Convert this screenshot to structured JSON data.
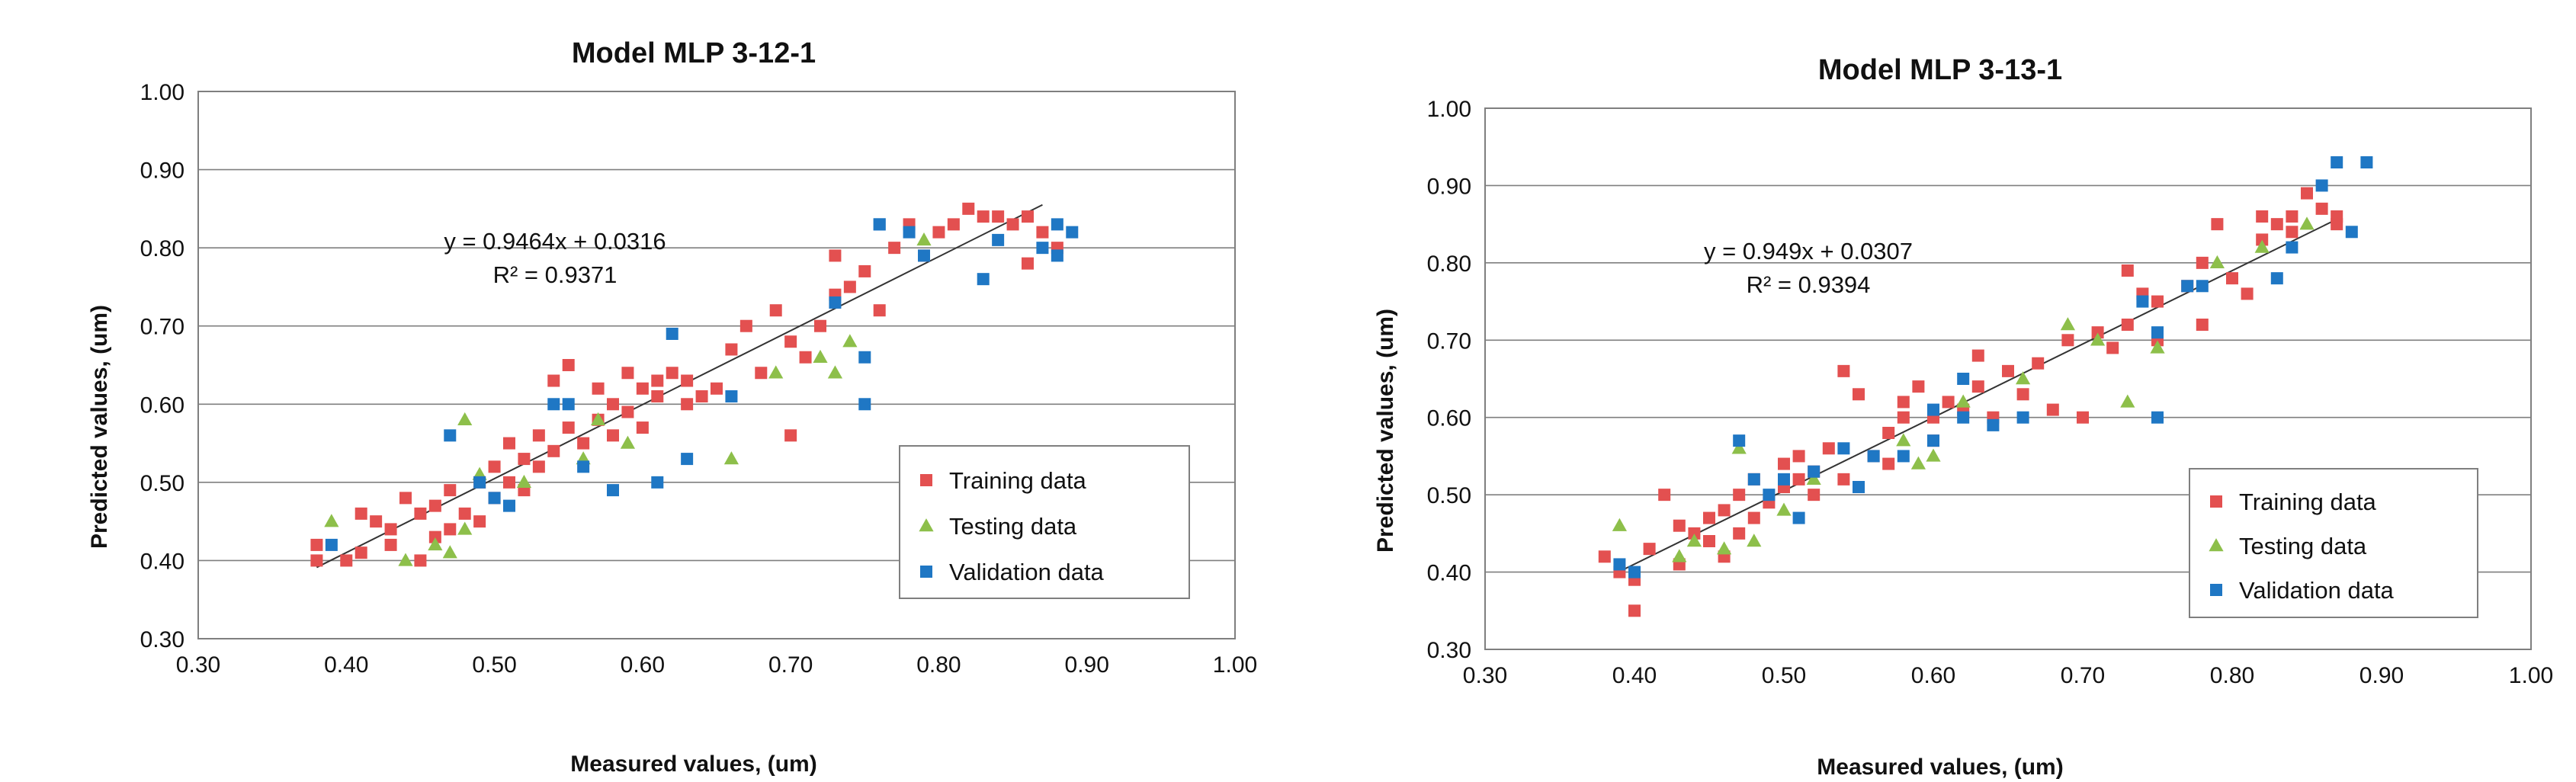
{
  "colors": {
    "training": "#e35050",
    "testing": "#8dbf4a",
    "validation": "#1f77c4",
    "fit": "#333333",
    "grid": "#7f7f7f"
  },
  "chart_data": [
    {
      "type": "scatter",
      "title": "Model MLP  3-12-1",
      "xlabel": "Measured values, (um)",
      "ylabel": "Predicted values, (um)",
      "xlim": [
        0.3,
        1.0
      ],
      "ylim": [
        0.3,
        1.0
      ],
      "xticks": [
        "0.30",
        "0.40",
        "0.50",
        "0.60",
        "0.70",
        "0.80",
        "0.90",
        "1.00"
      ],
      "yticks": [
        "0.30",
        "0.40",
        "0.50",
        "0.60",
        "0.70",
        "0.80",
        "0.90",
        "1.00"
      ],
      "trendline": {
        "slope": 0.9464,
        "intercept": 0.0316,
        "x_range": [
          0.38,
          0.87
        ],
        "equation": "y = 0.9464x + 0.0316",
        "r2": "R² = 0.9371"
      },
      "legend": [
        "Training data",
        "Testing data",
        "Validation data"
      ],
      "series": [
        {
          "name": "Training data",
          "marker": "square",
          "color": "#e35050",
          "points": [
            [
              0.38,
              0.4
            ],
            [
              0.38,
              0.42
            ],
            [
              0.4,
              0.4
            ],
            [
              0.41,
              0.41
            ],
            [
              0.41,
              0.46
            ],
            [
              0.42,
              0.45
            ],
            [
              0.43,
              0.42
            ],
            [
              0.43,
              0.44
            ],
            [
              0.44,
              0.48
            ],
            [
              0.45,
              0.46
            ],
            [
              0.45,
              0.4
            ],
            [
              0.46,
              0.43
            ],
            [
              0.46,
              0.47
            ],
            [
              0.47,
              0.44
            ],
            [
              0.47,
              0.49
            ],
            [
              0.48,
              0.46
            ],
            [
              0.49,
              0.45
            ],
            [
              0.49,
              0.5
            ],
            [
              0.5,
              0.52
            ],
            [
              0.5,
              0.48
            ],
            [
              0.51,
              0.55
            ],
            [
              0.51,
              0.5
            ],
            [
              0.52,
              0.53
            ],
            [
              0.52,
              0.49
            ],
            [
              0.53,
              0.56
            ],
            [
              0.53,
              0.52
            ],
            [
              0.54,
              0.63
            ],
            [
              0.54,
              0.54
            ],
            [
              0.55,
              0.57
            ],
            [
              0.55,
              0.65
            ],
            [
              0.56,
              0.55
            ],
            [
              0.57,
              0.58
            ],
            [
              0.57,
              0.62
            ],
            [
              0.58,
              0.6
            ],
            [
              0.58,
              0.56
            ],
            [
              0.59,
              0.64
            ],
            [
              0.59,
              0.59
            ],
            [
              0.6,
              0.62
            ],
            [
              0.6,
              0.57
            ],
            [
              0.61,
              0.61
            ],
            [
              0.61,
              0.63
            ],
            [
              0.62,
              0.64
            ],
            [
              0.63,
              0.6
            ],
            [
              0.63,
              0.63
            ],
            [
              0.64,
              0.61
            ],
            [
              0.65,
              0.62
            ],
            [
              0.66,
              0.67
            ],
            [
              0.67,
              0.7
            ],
            [
              0.68,
              0.64
            ],
            [
              0.69,
              0.72
            ],
            [
              0.7,
              0.56
            ],
            [
              0.7,
              0.68
            ],
            [
              0.71,
              0.66
            ],
            [
              0.72,
              0.7
            ],
            [
              0.73,
              0.74
            ],
            [
              0.73,
              0.79
            ],
            [
              0.74,
              0.75
            ],
            [
              0.75,
              0.77
            ],
            [
              0.76,
              0.72
            ],
            [
              0.77,
              0.8
            ],
            [
              0.78,
              0.83
            ],
            [
              0.79,
              0.79
            ],
            [
              0.8,
              0.82
            ],
            [
              0.81,
              0.83
            ],
            [
              0.82,
              0.85
            ],
            [
              0.83,
              0.84
            ],
            [
              0.84,
              0.84
            ],
            [
              0.85,
              0.83
            ],
            [
              0.86,
              0.84
            ],
            [
              0.87,
              0.82
            ],
            [
              0.86,
              0.78
            ],
            [
              0.88,
              0.8
            ]
          ]
        },
        {
          "name": "Testing data",
          "marker": "triangle",
          "color": "#8dbf4a",
          "points": [
            [
              0.39,
              0.45
            ],
            [
              0.44,
              0.4
            ],
            [
              0.46,
              0.42
            ],
            [
              0.47,
              0.41
            ],
            [
              0.48,
              0.58
            ],
            [
              0.48,
              0.44
            ],
            [
              0.49,
              0.51
            ],
            [
              0.52,
              0.5
            ],
            [
              0.57,
              0.58
            ],
            [
              0.59,
              0.55
            ],
            [
              0.66,
              0.53
            ],
            [
              0.69,
              0.64
            ],
            [
              0.72,
              0.66
            ],
            [
              0.74,
              0.68
            ],
            [
              0.79,
              0.81
            ],
            [
              0.73,
              0.64
            ],
            [
              0.56,
              0.53
            ]
          ]
        },
        {
          "name": "Validation data",
          "marker": "square",
          "color": "#1f77c4",
          "points": [
            [
              0.39,
              0.42
            ],
            [
              0.47,
              0.56
            ],
            [
              0.49,
              0.5
            ],
            [
              0.5,
              0.48
            ],
            [
              0.51,
              0.47
            ],
            [
              0.54,
              0.6
            ],
            [
              0.55,
              0.6
            ],
            [
              0.56,
              0.52
            ],
            [
              0.58,
              0.49
            ],
            [
              0.61,
              0.5
            ],
            [
              0.62,
              0.69
            ],
            [
              0.63,
              0.53
            ],
            [
              0.66,
              0.61
            ],
            [
              0.73,
              0.73
            ],
            [
              0.75,
              0.66
            ],
            [
              0.75,
              0.6
            ],
            [
              0.76,
              0.83
            ],
            [
              0.78,
              0.82
            ],
            [
              0.79,
              0.79
            ],
            [
              0.83,
              0.76
            ],
            [
              0.84,
              0.81
            ],
            [
              0.87,
              0.8
            ],
            [
              0.88,
              0.83
            ],
            [
              0.88,
              0.79
            ],
            [
              0.89,
              0.82
            ],
            [
              0.76,
              0.83
            ]
          ]
        }
      ]
    },
    {
      "type": "scatter",
      "title": "Model MLP  3-13-1",
      "xlabel": "Measured values, (um)",
      "ylabel": "Predicted values, (um)",
      "xlim": [
        0.3,
        1.0
      ],
      "ylim": [
        0.3,
        1.0
      ],
      "xticks": [
        "0.30",
        "0.40",
        "0.50",
        "0.60",
        "0.70",
        "0.80",
        "0.90",
        "1.00"
      ],
      "yticks": [
        "0.30",
        "0.40",
        "0.50",
        "0.60",
        "0.70",
        "0.80",
        "0.90",
        "1.00"
      ],
      "trendline": {
        "slope": 0.949,
        "intercept": 0.0307,
        "x_range": [
          0.39,
          0.87
        ],
        "equation": "y = 0.949x + 0.0307",
        "r2": "R² = 0.9394"
      },
      "legend": [
        "Training data",
        "Testing data",
        "Validation data"
      ],
      "series": [
        {
          "name": "Training data",
          "marker": "square",
          "color": "#e35050",
          "points": [
            [
              0.38,
              0.42
            ],
            [
              0.39,
              0.4
            ],
            [
              0.4,
              0.39
            ],
            [
              0.4,
              0.35
            ],
            [
              0.41,
              0.43
            ],
            [
              0.42,
              0.5
            ],
            [
              0.43,
              0.46
            ],
            [
              0.43,
              0.41
            ],
            [
              0.44,
              0.45
            ],
            [
              0.45,
              0.44
            ],
            [
              0.45,
              0.47
            ],
            [
              0.46,
              0.42
            ],
            [
              0.46,
              0.48
            ],
            [
              0.47,
              0.5
            ],
            [
              0.47,
              0.45
            ],
            [
              0.48,
              0.47
            ],
            [
              0.48,
              0.52
            ],
            [
              0.49,
              0.49
            ],
            [
              0.5,
              0.51
            ],
            [
              0.5,
              0.54
            ],
            [
              0.51,
              0.52
            ],
            [
              0.51,
              0.55
            ],
            [
              0.52,
              0.53
            ],
            [
              0.52,
              0.5
            ],
            [
              0.53,
              0.56
            ],
            [
              0.54,
              0.66
            ],
            [
              0.54,
              0.52
            ],
            [
              0.55,
              0.63
            ],
            [
              0.56,
              0.55
            ],
            [
              0.57,
              0.58
            ],
            [
              0.57,
              0.54
            ],
            [
              0.58,
              0.6
            ],
            [
              0.58,
              0.62
            ],
            [
              0.59,
              0.64
            ],
            [
              0.6,
              0.57
            ],
            [
              0.6,
              0.6
            ],
            [
              0.61,
              0.62
            ],
            [
              0.62,
              0.61
            ],
            [
              0.63,
              0.64
            ],
            [
              0.63,
              0.68
            ],
            [
              0.64,
              0.6
            ],
            [
              0.65,
              0.66
            ],
            [
              0.66,
              0.63
            ],
            [
              0.67,
              0.67
            ],
            [
              0.68,
              0.61
            ],
            [
              0.69,
              0.7
            ],
            [
              0.7,
              0.6
            ],
            [
              0.71,
              0.71
            ],
            [
              0.72,
              0.69
            ],
            [
              0.73,
              0.79
            ],
            [
              0.73,
              0.72
            ],
            [
              0.74,
              0.76
            ],
            [
              0.75,
              0.75
            ],
            [
              0.75,
              0.7
            ],
            [
              0.77,
              0.77
            ],
            [
              0.78,
              0.72
            ],
            [
              0.78,
              0.8
            ],
            [
              0.79,
              0.85
            ],
            [
              0.8,
              0.78
            ],
            [
              0.81,
              0.76
            ],
            [
              0.82,
              0.83
            ],
            [
              0.82,
              0.86
            ],
            [
              0.83,
              0.85
            ],
            [
              0.84,
              0.84
            ],
            [
              0.85,
              0.89
            ],
            [
              0.86,
              0.87
            ],
            [
              0.87,
              0.86
            ],
            [
              0.87,
              0.85
            ],
            [
              0.84,
              0.86
            ]
          ]
        },
        {
          "name": "Testing data",
          "marker": "triangle",
          "color": "#8dbf4a",
          "points": [
            [
              0.39,
              0.46
            ],
            [
              0.43,
              0.42
            ],
            [
              0.44,
              0.44
            ],
            [
              0.46,
              0.43
            ],
            [
              0.47,
              0.56
            ],
            [
              0.48,
              0.44
            ],
            [
              0.5,
              0.48
            ],
            [
              0.52,
              0.52
            ],
            [
              0.58,
              0.57
            ],
            [
              0.59,
              0.54
            ],
            [
              0.62,
              0.62
            ],
            [
              0.66,
              0.65
            ],
            [
              0.69,
              0.72
            ],
            [
              0.71,
              0.7
            ],
            [
              0.73,
              0.62
            ],
            [
              0.75,
              0.69
            ],
            [
              0.79,
              0.8
            ],
            [
              0.82,
              0.82
            ],
            [
              0.85,
              0.85
            ],
            [
              0.6,
              0.55
            ]
          ]
        },
        {
          "name": "Validation data",
          "marker": "square",
          "color": "#1f77c4",
          "points": [
            [
              0.39,
              0.41
            ],
            [
              0.4,
              0.4
            ],
            [
              0.47,
              0.57
            ],
            [
              0.48,
              0.52
            ],
            [
              0.49,
              0.5
            ],
            [
              0.5,
              0.52
            ],
            [
              0.51,
              0.47
            ],
            [
              0.52,
              0.53
            ],
            [
              0.54,
              0.56
            ],
            [
              0.55,
              0.51
            ],
            [
              0.56,
              0.55
            ],
            [
              0.58,
              0.55
            ],
            [
              0.6,
              0.57
            ],
            [
              0.6,
              0.61
            ],
            [
              0.62,
              0.65
            ],
            [
              0.62,
              0.6
            ],
            [
              0.64,
              0.59
            ],
            [
              0.66,
              0.6
            ],
            [
              0.74,
              0.75
            ],
            [
              0.75,
              0.71
            ],
            [
              0.75,
              0.6
            ],
            [
              0.77,
              0.77
            ],
            [
              0.78,
              0.77
            ],
            [
              0.83,
              0.78
            ],
            [
              0.84,
              0.82
            ],
            [
              0.86,
              0.9
            ],
            [
              0.87,
              0.93
            ],
            [
              0.88,
              0.84
            ],
            [
              0.89,
              0.93
            ]
          ]
        }
      ]
    }
  ]
}
